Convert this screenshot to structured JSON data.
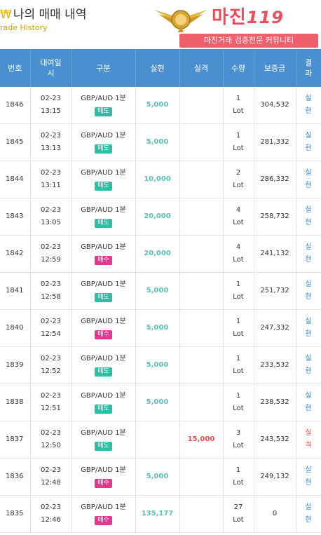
{
  "header": {
    "icon": "₩",
    "title": "나의 매매 내역",
    "subtitle": "rade History"
  },
  "logo": {
    "brand": "마진",
    "brand_num": "119",
    "tagline": "마진거래 검증전문 커뮤니티"
  },
  "table": {
    "columns": [
      "번호",
      "대여일\n시",
      "구분",
      "실현",
      "실격",
      "수량",
      "보증금",
      "결\n과"
    ],
    "rows": [
      {
        "no": "1846",
        "date": "02-23",
        "time": "13:15",
        "pair": "GBP/AUD 1분",
        "side": "매도",
        "side_type": "sell",
        "profit": "5,000",
        "loss": "",
        "qty": "1",
        "unit": "Lot",
        "deposit": "304,532",
        "r1": "실",
        "r2": "현",
        "result_type": "win"
      },
      {
        "no": "1845",
        "date": "02-23",
        "time": "13:13",
        "pair": "GBP/AUD 1분",
        "side": "매도",
        "side_type": "sell",
        "profit": "5,000",
        "loss": "",
        "qty": "1",
        "unit": "Lot",
        "deposit": "281,332",
        "r1": "실",
        "r2": "현",
        "result_type": "win"
      },
      {
        "no": "1844",
        "date": "02-23",
        "time": "13:11",
        "pair": "GBP/AUD 1분",
        "side": "매도",
        "side_type": "sell",
        "profit": "10,000",
        "loss": "",
        "qty": "2",
        "unit": "Lot",
        "deposit": "286,332",
        "r1": "실",
        "r2": "현",
        "result_type": "win"
      },
      {
        "no": "1843",
        "date": "02-23",
        "time": "13:05",
        "pair": "GBP/AUD 1분",
        "side": "매도",
        "side_type": "sell",
        "profit": "20,000",
        "loss": "",
        "qty": "4",
        "unit": "Lot",
        "deposit": "258,732",
        "r1": "실",
        "r2": "현",
        "result_type": "win"
      },
      {
        "no": "1842",
        "date": "02-23",
        "time": "12:59",
        "pair": "GBP/AUD 1분",
        "side": "매수",
        "side_type": "buy",
        "profit": "20,000",
        "loss": "",
        "qty": "4",
        "unit": "Lot",
        "deposit": "241,132",
        "r1": "실",
        "r2": "현",
        "result_type": "win"
      },
      {
        "no": "1841",
        "date": "02-23",
        "time": "12:58",
        "pair": "GBP/AUD 1분",
        "side": "매도",
        "side_type": "sell",
        "profit": "5,000",
        "loss": "",
        "qty": "1",
        "unit": "Lot",
        "deposit": "251,732",
        "r1": "실",
        "r2": "현",
        "result_type": "win"
      },
      {
        "no": "1840",
        "date": "02-23",
        "time": "12:54",
        "pair": "GBP/AUD 1분",
        "side": "매수",
        "side_type": "buy",
        "profit": "5,000",
        "loss": "",
        "qty": "1",
        "unit": "Lot",
        "deposit": "247,332",
        "r1": "실",
        "r2": "현",
        "result_type": "win"
      },
      {
        "no": "1839",
        "date": "02-23",
        "time": "12:52",
        "pair": "GBP/AUD 1분",
        "side": "매도",
        "side_type": "sell",
        "profit": "5,000",
        "loss": "",
        "qty": "1",
        "unit": "Lot",
        "deposit": "233,532",
        "r1": "실",
        "r2": "현",
        "result_type": "win"
      },
      {
        "no": "1838",
        "date": "02-23",
        "time": "12:51",
        "pair": "GBP/AUD 1분",
        "side": "매도",
        "side_type": "sell",
        "profit": "5,000",
        "loss": "",
        "qty": "1",
        "unit": "Lot",
        "deposit": "238,532",
        "r1": "실",
        "r2": "현",
        "result_type": "win"
      },
      {
        "no": "1837",
        "date": "02-23",
        "time": "12:50",
        "pair": "GBP/AUD 1분",
        "side": "매도",
        "side_type": "sell",
        "profit": "",
        "loss": "15,000",
        "qty": "3",
        "unit": "Lot",
        "deposit": "243,532",
        "r1": "실",
        "r2": "격",
        "result_type": "lose"
      },
      {
        "no": "1836",
        "date": "02-23",
        "time": "12:48",
        "pair": "GBP/AUD 1분",
        "side": "매수",
        "side_type": "buy",
        "profit": "5,000",
        "loss": "",
        "qty": "1",
        "unit": "Lot",
        "deposit": "249,132",
        "r1": "실",
        "r2": "현",
        "result_type": "win"
      },
      {
        "no": "1835",
        "date": "02-23",
        "time": "12:46",
        "pair": "GBP/AUD 1분",
        "side": "매수",
        "side_type": "buy",
        "profit": "135,177",
        "loss": "",
        "qty": "27",
        "unit": "Lot",
        "deposit": "0",
        "r1": "실",
        "r2": "현",
        "result_type": "win"
      }
    ]
  },
  "colors": {
    "header_bg": "#4a8fcf",
    "sell": "#2bbfa6",
    "buy": "#e8368f",
    "profit": "#5bbfb5",
    "loss": "#e94c4c",
    "brand": "#ee4c5a"
  }
}
